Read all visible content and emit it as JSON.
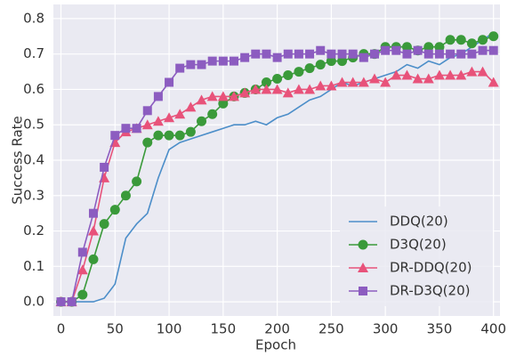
{
  "chart_data": {
    "type": "line",
    "x_label": "Epoch",
    "y_label": "Success Rate",
    "x": [
      0,
      10,
      20,
      30,
      40,
      50,
      60,
      70,
      80,
      90,
      100,
      110,
      120,
      130,
      140,
      150,
      160,
      170,
      180,
      190,
      200,
      210,
      220,
      230,
      240,
      250,
      260,
      270,
      280,
      290,
      300,
      310,
      320,
      330,
      340,
      350,
      360,
      370,
      380,
      390,
      400
    ],
    "series": [
      {
        "name": "DDQ(20)",
        "color": "#4c8ec9",
        "marker": "none",
        "values": [
          0,
          0,
          0,
          0,
          0.01,
          0.05,
          0.18,
          0.22,
          0.25,
          0.35,
          0.43,
          0.45,
          0.46,
          0.47,
          0.48,
          0.49,
          0.5,
          0.5,
          0.51,
          0.5,
          0.52,
          0.53,
          0.55,
          0.57,
          0.58,
          0.6,
          0.62,
          0.61,
          0.62,
          0.63,
          0.64,
          0.65,
          0.67,
          0.66,
          0.68,
          0.67,
          0.69,
          0.7,
          0.72,
          0.74,
          0.76
        ]
      },
      {
        "name": "D3Q(20)",
        "color": "#3a9a3a",
        "marker": "circle",
        "values": [
          0,
          0,
          0.02,
          0.12,
          0.22,
          0.26,
          0.3,
          0.34,
          0.45,
          0.47,
          0.47,
          0.47,
          0.48,
          0.51,
          0.53,
          0.56,
          0.58,
          0.59,
          0.6,
          0.62,
          0.63,
          0.64,
          0.65,
          0.66,
          0.67,
          0.68,
          0.68,
          0.69,
          0.7,
          0.7,
          0.72,
          0.72,
          0.72,
          0.71,
          0.72,
          0.72,
          0.74,
          0.74,
          0.73,
          0.74,
          0.75
        ]
      },
      {
        "name": "DR-DDQ(20)",
        "color": "#e8527a",
        "marker": "triangle",
        "values": [
          0,
          0,
          0.09,
          0.2,
          0.35,
          0.45,
          0.48,
          0.49,
          0.5,
          0.51,
          0.52,
          0.53,
          0.55,
          0.57,
          0.58,
          0.58,
          0.58,
          0.59,
          0.6,
          0.6,
          0.6,
          0.59,
          0.6,
          0.6,
          0.61,
          0.61,
          0.62,
          0.62,
          0.62,
          0.63,
          0.62,
          0.64,
          0.64,
          0.63,
          0.63,
          0.64,
          0.64,
          0.64,
          0.65,
          0.65,
          0.62
        ]
      },
      {
        "name": "DR-D3Q(20)",
        "color": "#8c5cc0",
        "marker": "square",
        "values": [
          0,
          0,
          0.14,
          0.25,
          0.38,
          0.47,
          0.49,
          0.49,
          0.54,
          0.58,
          0.62,
          0.66,
          0.67,
          0.67,
          0.68,
          0.68,
          0.68,
          0.69,
          0.7,
          0.7,
          0.69,
          0.7,
          0.7,
          0.7,
          0.71,
          0.7,
          0.7,
          0.7,
          0.69,
          0.7,
          0.71,
          0.71,
          0.7,
          0.71,
          0.7,
          0.7,
          0.7,
          0.7,
          0.7,
          0.71,
          0.71
        ]
      }
    ],
    "xlim": [
      -7,
      406
    ],
    "ylim": [
      -0.04,
      0.84
    ],
    "xticks": [
      0,
      50,
      100,
      150,
      200,
      250,
      300,
      350,
      400
    ],
    "yticks": [
      {
        "value": 0,
        "label": "0.0"
      },
      0.1,
      0.2,
      0.3,
      0.4,
      0.5,
      0.6,
      0.7,
      0.8
    ],
    "grid": true,
    "legend": "lower right"
  }
}
